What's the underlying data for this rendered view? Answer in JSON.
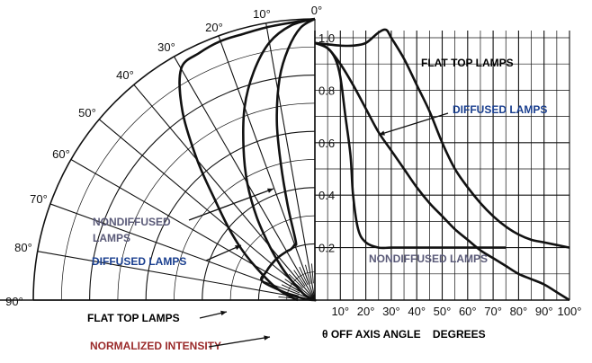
{
  "chart_data": {
    "type": "line",
    "description_free": true,
    "polar": {
      "angle_tick_labels": [
        "0°",
        "10°",
        "20°",
        "30°",
        "40°",
        "50°",
        "60°",
        "70°",
        "80°",
        "90°"
      ],
      "series": [
        {
          "name": "FLAT TOP LAMPS",
          "label_text": "FLAT TOP LAMPS",
          "points": [
            [
              0,
              1.0
            ],
            [
              5,
              0.99
            ],
            [
              10,
              0.985
            ],
            [
              15,
              0.98
            ],
            [
              20,
              0.98
            ],
            [
              25,
              0.97
            ],
            [
              30,
              0.95
            ],
            [
              35,
              0.82
            ],
            [
              40,
              0.65
            ],
            [
              45,
              0.5
            ],
            [
              50,
              0.4
            ],
            [
              55,
              0.32
            ],
            [
              60,
              0.25
            ],
            [
              70,
              0.16
            ],
            [
              80,
              0.1
            ],
            [
              90,
              0.06
            ]
          ]
        },
        {
          "name": "DIFFUSED LAMPS",
          "label_text": "DIFFUSED LAMPS",
          "points": [
            [
              0,
              1.0
            ],
            [
              5,
              0.98
            ],
            [
              10,
              0.93
            ],
            [
              15,
              0.84
            ],
            [
              20,
              0.73
            ],
            [
              25,
              0.6
            ],
            [
              30,
              0.48
            ],
            [
              35,
              0.36
            ],
            [
              40,
              0.25
            ],
            [
              45,
              0.17
            ],
            [
              50,
              0.11
            ],
            [
              60,
              0.05
            ],
            [
              70,
              0.02
            ],
            [
              80,
              0.0
            ],
            [
              90,
              0.0
            ]
          ]
        },
        {
          "name": "NONDIFFUSED LAMPS",
          "label_text": "NONDIFFUSED LAMPS",
          "points": [
            [
              0,
              1.0
            ],
            [
              3,
              0.97
            ],
            [
              6,
              0.9
            ],
            [
              9,
              0.8
            ],
            [
              12,
              0.65
            ],
            [
              14,
              0.5
            ],
            [
              16,
              0.35
            ],
            [
              18,
              0.22
            ],
            [
              20,
              0.21
            ],
            [
              25,
              0.2
            ],
            [
              30,
              0.2
            ],
            [
              40,
              0.2
            ],
            [
              50,
              0.2
            ],
            [
              60,
              0.2
            ],
            [
              70,
              0.2
            ],
            [
              75,
              0.12
            ],
            [
              80,
              0.06
            ],
            [
              85,
              0.02
            ],
            [
              90,
              0.0
            ]
          ]
        }
      ],
      "intensity_label": "NORMALIZED INTENSITY"
    },
    "cartesian": {
      "xlabel": "θ OFF AXIS ANGLE    DEGREES",
      "x_tick_labels": [
        "10°",
        "20°",
        "30°",
        "40°",
        "50°",
        "60°",
        "70°",
        "80°",
        "90°",
        "100°"
      ],
      "y_tick_labels": [
        "0.2",
        "0.4",
        "0.6",
        "0.8",
        "1.0"
      ],
      "xlim": [
        0,
        100
      ],
      "ylim": [
        0,
        1.05
      ],
      "series": [
        {
          "name": "FLAT TOP LAMPS",
          "label_text": "FLAT TOP LAMPS",
          "x": [
            0,
            5,
            10,
            15,
            20,
            25,
            28,
            30,
            35,
            40,
            45,
            50,
            55,
            60,
            65,
            70,
            75,
            80,
            85,
            90,
            95,
            100
          ],
          "y": [
            0.98,
            0.975,
            0.97,
            0.97,
            0.98,
            1.02,
            1.03,
            1.0,
            0.92,
            0.82,
            0.72,
            0.6,
            0.5,
            0.43,
            0.37,
            0.32,
            0.28,
            0.25,
            0.23,
            0.22,
            0.21,
            0.2
          ]
        },
        {
          "name": "DIFFUSED LAMPS",
          "label_text": "DIFFUSED LAMPS",
          "x": [
            0,
            5,
            10,
            15,
            20,
            25,
            30,
            35,
            40,
            45,
            50,
            55,
            60,
            65,
            70,
            75,
            80,
            85,
            90,
            95,
            100
          ],
          "y": [
            0.98,
            0.96,
            0.9,
            0.82,
            0.73,
            0.64,
            0.57,
            0.5,
            0.43,
            0.37,
            0.32,
            0.27,
            0.23,
            0.19,
            0.16,
            0.13,
            0.1,
            0.08,
            0.06,
            0.03,
            0.0
          ]
        },
        {
          "name": "NONDIFFUSED LAMPS",
          "label_text": "NONDIFFUSED LAMPS",
          "x": [
            0,
            5,
            8,
            10,
            12,
            14,
            15,
            17,
            20,
            25,
            30,
            40,
            50,
            60,
            70,
            75
          ],
          "y": [
            0.98,
            0.96,
            0.92,
            0.85,
            0.7,
            0.55,
            0.4,
            0.27,
            0.22,
            0.2,
            0.2,
            0.2,
            0.2,
            0.2,
            0.2,
            0.2
          ]
        }
      ]
    }
  }
}
